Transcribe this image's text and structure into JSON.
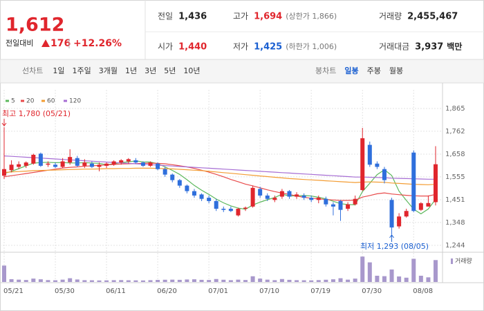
{
  "quote": {
    "price": "1,612",
    "change_label": "전일대비",
    "change": "176",
    "change_pct": "+12.26%",
    "color": "#e0262d"
  },
  "stats": [
    {
      "label": "전일",
      "value": "1,436",
      "color": "#222222"
    },
    {
      "label": "고가",
      "value": "1,694",
      "note": "(상한가 1,866)",
      "color": "#e0262d"
    },
    {
      "label": "거래량",
      "value": "2,455,467",
      "color": "#222222"
    },
    {
      "label": "시가",
      "value": "1,440",
      "color": "#e0262d"
    },
    {
      "label": "저가",
      "value": "1,425",
      "note": "(하한가 1,006)",
      "color": "#1a5fd1"
    },
    {
      "label": "거래대금",
      "value": "3,937",
      "unit": "백만",
      "color": "#222222"
    }
  ],
  "line_tabs": [
    "선차트",
    "1일",
    "1주일",
    "3개월",
    "1년",
    "3년",
    "5년",
    "10년"
  ],
  "candle_tabs": [
    "봉차트",
    "일봉",
    "주봉",
    "월봉"
  ],
  "candle_active_index": 1,
  "chart_data": {
    "type": "candlestick",
    "categories": [
      "05/21",
      null,
      null,
      null,
      null,
      null,
      null,
      "05/30",
      null,
      null,
      null,
      null,
      null,
      null,
      "06/11",
      null,
      null,
      null,
      null,
      null,
      null,
      "06/20",
      null,
      null,
      null,
      null,
      null,
      null,
      "07/01",
      null,
      null,
      null,
      null,
      null,
      null,
      "07/10",
      null,
      null,
      null,
      null,
      null,
      null,
      "07/19",
      null,
      null,
      null,
      null,
      null,
      null,
      "07/30",
      null,
      null,
      null,
      null,
      null,
      null,
      "08/08",
      null,
      null,
      null
    ],
    "open": [
      1560,
      1585,
      1600,
      1605,
      1615,
      1660,
      1610,
      1610,
      1600,
      1620,
      1640,
      1605,
      1615,
      1600,
      1605,
      1610,
      1620,
      1625,
      1630,
      1620,
      1605,
      1615,
      1590,
      1565,
      1540,
      1515,
      1490,
      1475,
      1460,
      1445,
      1410,
      1410,
      1380,
      1410,
      1420,
      1500,
      1470,
      1450,
      1465,
      1490,
      1465,
      1470,
      1460,
      1450,
      1455,
      1430,
      1445,
      1410,
      1430,
      1495,
      1700,
      1615,
      1590,
      1450,
      1330,
      1375,
      1665,
      1405,
      1420,
      1440
    ],
    "high": [
      1780,
      1630,
      1625,
      1625,
      1660,
      1665,
      1625,
      1620,
      1640,
      1680,
      1650,
      1635,
      1625,
      1620,
      1620,
      1630,
      1635,
      1640,
      1640,
      1625,
      1625,
      1620,
      1600,
      1570,
      1545,
      1520,
      1500,
      1480,
      1470,
      1455,
      1420,
      1420,
      1415,
      1420,
      1515,
      1510,
      1480,
      1470,
      1500,
      1495,
      1485,
      1480,
      1470,
      1470,
      1465,
      1440,
      1450,
      1440,
      1470,
      1777,
      1715,
      1625,
      1600,
      1460,
      1390,
      1410,
      1675,
      1440,
      1470,
      1694
    ],
    "low": [
      1545,
      1575,
      1590,
      1595,
      1610,
      1600,
      1600,
      1595,
      1595,
      1610,
      1600,
      1595,
      1595,
      1580,
      1595,
      1605,
      1610,
      1615,
      1615,
      1600,
      1600,
      1585,
      1555,
      1530,
      1505,
      1480,
      1460,
      1445,
      1435,
      1400,
      1395,
      1395,
      1375,
      1400,
      1415,
      1460,
      1445,
      1440,
      1455,
      1455,
      1455,
      1450,
      1440,
      1435,
      1420,
      1380,
      1355,
      1400,
      1425,
      1490,
      1600,
      1590,
      1525,
      1293,
      1320,
      1370,
      1395,
      1400,
      1420,
      1425
    ],
    "close": [
      1590,
      1610,
      1612,
      1620,
      1655,
      1605,
      1615,
      1600,
      1625,
      1645,
      1605,
      1620,
      1600,
      1610,
      1615,
      1625,
      1630,
      1635,
      1620,
      1605,
      1620,
      1590,
      1565,
      1540,
      1515,
      1490,
      1470,
      1455,
      1445,
      1410,
      1405,
      1400,
      1410,
      1415,
      1505,
      1470,
      1455,
      1460,
      1490,
      1465,
      1475,
      1460,
      1450,
      1460,
      1430,
      1420,
      1405,
      1430,
      1455,
      1730,
      1610,
      1600,
      1540,
      1325,
      1375,
      1400,
      1400,
      1435,
      1436,
      1612
    ],
    "up_color": "#e0262d",
    "down_color": "#2f6fdc",
    "ylim": [
      1244,
      1865
    ],
    "yticks": [
      {
        "value": 1244,
        "label": "1,244"
      },
      {
        "value": 1348,
        "label": "1,348"
      },
      {
        "value": 1451,
        "label": "1,451"
      },
      {
        "value": 1555,
        "label": "1,555"
      },
      {
        "value": 1658,
        "label": "1,658"
      },
      {
        "value": 1762,
        "label": "1,762"
      },
      {
        "value": 1865,
        "label": "1,865"
      }
    ],
    "grid": true,
    "series": [
      {
        "name": "5",
        "color": "#5cb85c",
        "values": [
          1570,
          1580,
          1592,
          1605,
          1617,
          1620,
          1621,
          1619,
          1620,
          1618,
          1618,
          1619,
          1618,
          1616,
          1610,
          1614,
          1620,
          1623,
          1627,
          1623,
          1622,
          1614,
          1600,
          1584,
          1566,
          1542,
          1516,
          1494,
          1475,
          1454,
          1437,
          1423,
          1413,
          1408,
          1427,
          1440,
          1451,
          1461,
          1476,
          1468,
          1469,
          1470,
          1468,
          1462,
          1455,
          1444,
          1433,
          1429,
          1428,
          1488,
          1526,
          1565,
          1587,
          1561,
          1490,
          1448,
          1408,
          1387,
          1409,
          1453
        ]
      },
      {
        "name": "20",
        "color": "#e84a4a",
        "values": [
          1555,
          1560,
          1565,
          1570,
          1575,
          1580,
          1585,
          1590,
          1595,
          1598,
          1600,
          1603,
          1605,
          1607,
          1609,
          1611,
          1613,
          1614,
          1615,
          1616,
          1617,
          1616,
          1614,
          1610,
          1605,
          1600,
          1593,
          1585,
          1576,
          1566,
          1555,
          1543,
          1533,
          1522,
          1514,
          1505,
          1496,
          1488,
          1481,
          1475,
          1468,
          1462,
          1458,
          1455,
          1452,
          1450,
          1448,
          1448,
          1449,
          1463,
          1470,
          1478,
          1482,
          1477,
          1474,
          1471,
          1469,
          1468,
          1468,
          1475
        ]
      },
      {
        "name": "60",
        "color": "#f39c32",
        "values": [
          1575,
          1577,
          1579,
          1581,
          1583,
          1584,
          1585,
          1586,
          1587,
          1588,
          1589,
          1590,
          1590,
          1591,
          1592,
          1592,
          1593,
          1593,
          1594,
          1594,
          1594,
          1593,
          1592,
          1591,
          1589,
          1587,
          1585,
          1583,
          1580,
          1577,
          1574,
          1571,
          1568,
          1565,
          1562,
          1559,
          1556,
          1553,
          1550,
          1547,
          1545,
          1543,
          1541,
          1539,
          1537,
          1535,
          1533,
          1531,
          1529,
          1531,
          1532,
          1531,
          1530,
          1527,
          1525,
          1523,
          1521,
          1520,
          1519,
          1521
        ]
      },
      {
        "name": "120",
        "color": "#a66dd4",
        "values": [
          1650,
          1648,
          1646,
          1644,
          1642,
          1640,
          1638,
          1636,
          1634,
          1632,
          1630,
          1628,
          1626,
          1624,
          1622,
          1620,
          1618,
          1616,
          1614,
          1612,
          1610,
          1608,
          1606,
          1604,
          1602,
          1600,
          1598,
          1596,
          1594,
          1592,
          1590,
          1588,
          1586,
          1584,
          1582,
          1580,
          1578,
          1576,
          1574,
          1572,
          1570,
          1568,
          1566,
          1564,
          1562,
          1560,
          1558,
          1556,
          1554,
          1554,
          1553,
          1552,
          1551,
          1549,
          1548,
          1547,
          1546,
          1545,
          1544,
          1544
        ]
      }
    ],
    "volume": {
      "name": "거래량",
      "color": "#a898cc",
      "ylim": [
        0,
        3100000
      ],
      "values": [
        1840000,
        310000,
        260000,
        220000,
        380000,
        300000,
        210000,
        190000,
        260000,
        420000,
        280000,
        200000,
        190000,
        170000,
        180000,
        200000,
        210000,
        190000,
        180000,
        170000,
        200000,
        230000,
        250000,
        260000,
        240000,
        280000,
        300000,
        240000,
        220000,
        330000,
        250000,
        200000,
        260000,
        220000,
        640000,
        380000,
        260000,
        200000,
        330000,
        240000,
        200000,
        190000,
        180000,
        210000,
        250000,
        300000,
        420000,
        260000,
        380000,
        2850000,
        2200000,
        700000,
        650000,
        1400000,
        620000,
        480000,
        2600000,
        700000,
        520000,
        2455467
      ]
    },
    "annotations": [
      {
        "text": "최고 1,780 (05/21)",
        "color": "#e0262d"
      },
      {
        "text": "최저 1,293 (08/05)",
        "color": "#1a5fd1"
      }
    ]
  }
}
